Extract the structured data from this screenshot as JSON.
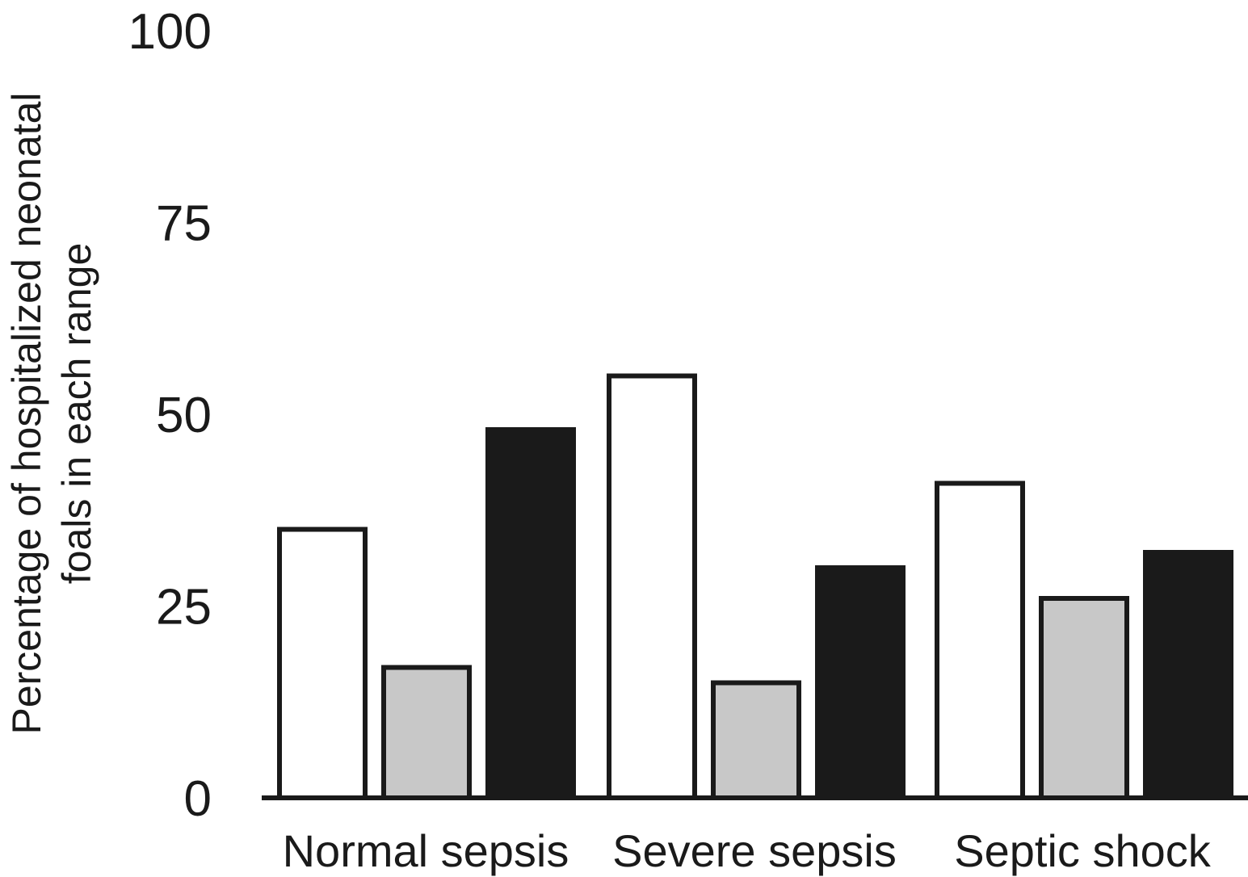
{
  "chart_data": {
    "type": "bar",
    "title": "",
    "xlabel": "",
    "ylabel_lines": [
      "Percentage of hospitalized neonatal",
      "foals in each range"
    ],
    "ylim": [
      0,
      100
    ],
    "yticks": [
      "0",
      "25",
      "50",
      "75",
      "100"
    ],
    "grid": false,
    "legend": "none",
    "categories": [
      "Normal sepsis",
      "Severe sepsis",
      "Septic shock"
    ],
    "series": [
      {
        "fill": "#ffffff",
        "stroke": "#1a1a1a",
        "values": [
          35,
          55,
          41
        ]
      },
      {
        "fill": "#c8c8c8",
        "stroke": "#1a1a1a",
        "values": [
          17,
          15,
          26
        ]
      },
      {
        "fill": "#1a1a1a",
        "stroke": "#1a1a1a",
        "values": [
          48,
          30,
          32
        ]
      }
    ]
  },
  "colors": {
    "axis": "#1a1a1a",
    "text": "#1a1a1a"
  }
}
